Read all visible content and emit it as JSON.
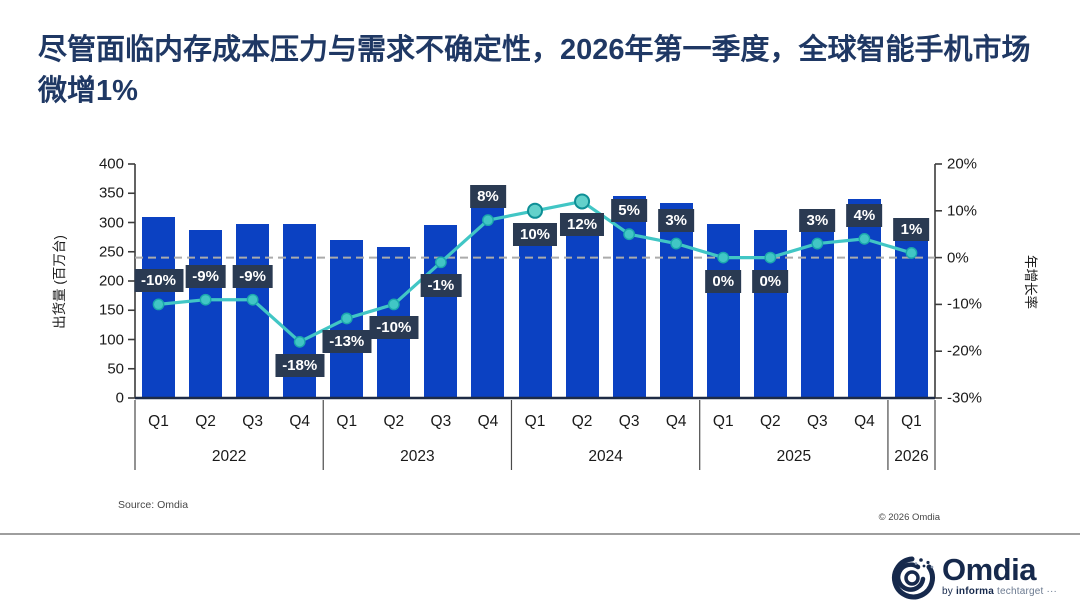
{
  "title": "尽管面临内存成本压力与需求不确定性，2026年第一季度，全球智能手机市场微增1%",
  "chart_data": {
    "type": "combo-bar-line",
    "year_groups": [
      {
        "label": "2022",
        "quarters": [
          "Q1",
          "Q2",
          "Q3",
          "Q4"
        ]
      },
      {
        "label": "2023",
        "quarters": [
          "Q1",
          "Q2",
          "Q3",
          "Q4"
        ]
      },
      {
        "label": "2024",
        "quarters": [
          "Q1",
          "Q2",
          "Q3",
          "Q4"
        ]
      },
      {
        "label": "2025",
        "quarters": [
          "Q1",
          "Q2",
          "Q3",
          "Q4"
        ]
      },
      {
        "label": "2026",
        "quarters": [
          "Q1"
        ]
      }
    ],
    "series": [
      {
        "name": "出货量",
        "type": "bar",
        "unit": "百万台",
        "values": [
          310,
          287,
          298,
          298,
          270,
          258,
          296,
          360,
          297,
          298,
          345,
          333,
          297,
          288,
          322,
          340,
          300
        ]
      },
      {
        "name": "年增长率",
        "type": "line",
        "unit": "%",
        "values": [
          -10,
          -9,
          -9,
          -18,
          -13,
          -10,
          -1,
          8,
          10,
          12,
          5,
          3,
          0,
          0,
          3,
          4,
          1
        ],
        "labels": [
          "-10%",
          "-9%",
          "-9%",
          "-18%",
          "-13%",
          "-10%",
          "-1%",
          "8%",
          "10%",
          "12%",
          "5%",
          "3%",
          "0%",
          "0%",
          "3%",
          "4%",
          "1%"
        ],
        "label_position": [
          "above",
          "above",
          "above",
          "below",
          "below",
          "below",
          "below",
          "above",
          "below",
          "below",
          "above",
          "above",
          "below",
          "below",
          "above",
          "above",
          "above"
        ],
        "large_markers": [
          8,
          9
        ]
      }
    ],
    "left_axis": {
      "label": "出货量 (百万台)",
      "min": 0,
      "max": 400,
      "ticks": [
        400,
        350,
        300,
        250,
        200,
        150,
        100,
        50,
        0
      ]
    },
    "right_axis": {
      "label": "年增长率",
      "min": -30,
      "max": 20,
      "ticks": [
        "20%",
        "10%",
        "0%",
        "-10%",
        "-20%",
        "-30%"
      ]
    },
    "zero_line": true,
    "legend": "none",
    "colors": {
      "bar": "#0B41C2",
      "line": "#41C6C5",
      "marker_fill": "#41C6C5",
      "marker_stroke": "#1BA8AC",
      "large_marker_fill": "#63D1CB",
      "large_marker_stroke": "#0E8F96",
      "badge_bg": "#2A3A52",
      "badge_text": "#FFFFFF",
      "zero_line": "#ABABAB",
      "axis": "#3c3c3c",
      "baseline": "#1E2B45",
      "separator": "#4a4a4a"
    }
  },
  "footer": {
    "source": "Source: Omdia",
    "copyright": "© 2026 Omdia"
  },
  "logo": {
    "name": "Omdia",
    "byline_prefix": "by",
    "byline_bold": "informa",
    "byline_rest": "techtarget",
    "dots": "···"
  }
}
